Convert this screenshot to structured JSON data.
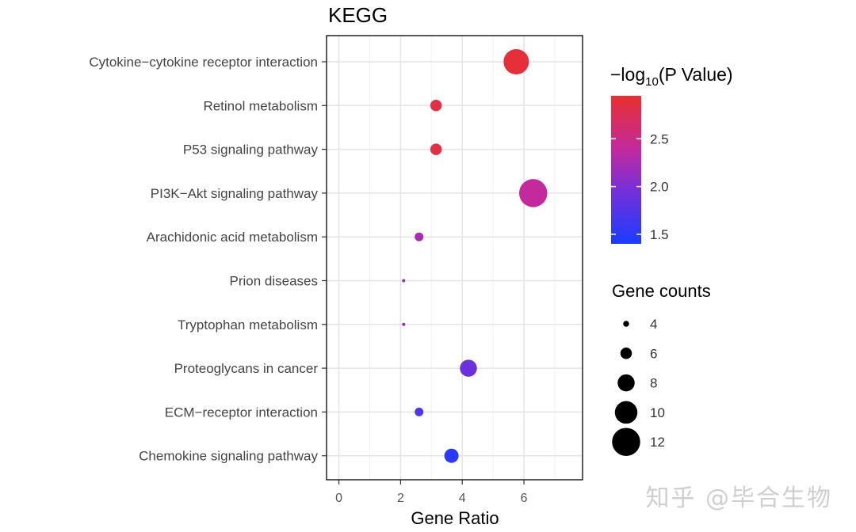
{
  "chart_data": {
    "type": "scatter",
    "title": "KEGG",
    "xlabel": "Gene Ratio",
    "ylabel": "",
    "xlim": [
      -0.4,
      7.9
    ],
    "x_ticks": [
      0,
      2,
      4,
      6
    ],
    "grid": true,
    "categories": [
      "Cytokine−cytokine receptor interaction",
      "Retinol metabolism",
      "P53 signaling pathway",
      "PI3K−Akt signaling pathway",
      "Arachidonic acid metabolism",
      "Prion diseases",
      "Tryptophan metabolism",
      "Proteoglycans in cancer",
      "ECM−receptor interaction",
      "Chemokine signaling pathway"
    ],
    "gene_ratio": [
      5.75,
      3.15,
      3.15,
      6.3,
      2.6,
      2.1,
      2.1,
      4.2,
      2.6,
      3.65
    ],
    "gene_counts": [
      11,
      6,
      6,
      12,
      5,
      3,
      3,
      8,
      5,
      7
    ],
    "neg_log10_p": [
      2.9,
      2.85,
      2.85,
      2.4,
      2.25,
      2.15,
      2.15,
      1.9,
      1.75,
      1.5
    ],
    "color_legend": {
      "title_prefix": "−log",
      "title_sub": "10",
      "title_suffix": "(P Value)",
      "range": [
        1.4,
        2.95
      ],
      "ticks": [
        1.5,
        2.0,
        2.5
      ],
      "tick_labels": [
        "1.5",
        "2.0",
        "2.5"
      ],
      "colors": [
        "#1a3cff",
        "#7b2fd6",
        "#c42a9a",
        "#e8302f"
      ]
    },
    "size_legend": {
      "title": "Gene counts",
      "values": [
        4,
        6,
        8,
        10,
        12
      ],
      "labels": [
        "4",
        "6",
        "8",
        "10",
        "12"
      ]
    }
  },
  "watermark": "知乎 @毕合生物"
}
